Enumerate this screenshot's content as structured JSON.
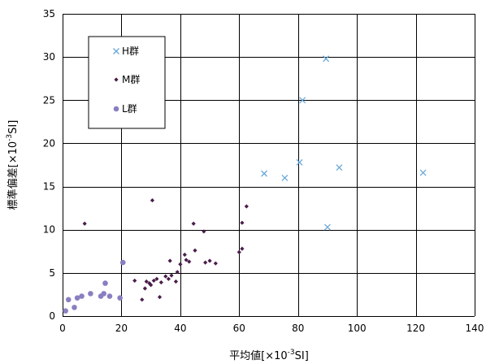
{
  "chart_data": {
    "type": "scatter",
    "xlabel": {
      "prefix": "平均値[×10",
      "sup": "-3",
      "suffix": "SI]"
    },
    "ylabel": {
      "prefix": "標準偏差[×10",
      "sup": "-3",
      "suffix": "SI]"
    },
    "xlim": [
      0,
      140
    ],
    "ylim": [
      0,
      35
    ],
    "xticks": [
      0,
      20,
      40,
      60,
      80,
      100,
      120,
      140
    ],
    "yticks": [
      0,
      5,
      10,
      15,
      20,
      25,
      30,
      35
    ],
    "grid": true,
    "legend": {
      "placement": "top-left"
    },
    "series": [
      {
        "name": "H群",
        "marker": "x",
        "color": "#6aa8d8",
        "points": [
          [
            68.5,
            16.5
          ],
          [
            75.5,
            16
          ],
          [
            80.5,
            17.8
          ],
          [
            81.5,
            25
          ],
          [
            89.5,
            29.8
          ],
          [
            94,
            17.2
          ],
          [
            90,
            10.3
          ],
          [
            122.5,
            16.6
          ]
        ]
      },
      {
        "name": "M群",
        "marker": "diamond",
        "color": "#4a1d4a",
        "points": [
          [
            7.5,
            10.7
          ],
          [
            24.5,
            4.1
          ],
          [
            27,
            1.9
          ],
          [
            28,
            3.2
          ],
          [
            28.5,
            4.0
          ],
          [
            29.5,
            3.8
          ],
          [
            30,
            3.6
          ],
          [
            30.5,
            13.4
          ],
          [
            31,
            4.1
          ],
          [
            32,
            4.3
          ],
          [
            33,
            2.2
          ],
          [
            33.5,
            3.9
          ],
          [
            35,
            4.6
          ],
          [
            36,
            4.3
          ],
          [
            36.5,
            6.4
          ],
          [
            37,
            4.7
          ],
          [
            38.5,
            4.0
          ],
          [
            39,
            5.1
          ],
          [
            40,
            6.0
          ],
          [
            41.5,
            7.1
          ],
          [
            42,
            6.5
          ],
          [
            43,
            6.3
          ],
          [
            44.5,
            10.7
          ],
          [
            45,
            7.6
          ],
          [
            48,
            9.8
          ],
          [
            48.5,
            6.2
          ],
          [
            50,
            6.4
          ],
          [
            52,
            6.1
          ],
          [
            60,
            7.4
          ],
          [
            61,
            7.8
          ],
          [
            61,
            10.8
          ],
          [
            62.5,
            12.7
          ]
        ]
      },
      {
        "name": "L群",
        "marker": "circle",
        "color": "#8a7fc0",
        "points": [
          [
            1,
            0.6
          ],
          [
            2,
            1.9
          ],
          [
            4,
            1.0
          ],
          [
            5,
            2.1
          ],
          [
            6.5,
            2.3
          ],
          [
            9.5,
            2.6
          ],
          [
            13,
            2.3
          ],
          [
            14,
            2.6
          ],
          [
            14.5,
            3.8
          ],
          [
            16,
            2.3
          ],
          [
            19.5,
            2.1
          ],
          [
            20.5,
            6.2
          ]
        ]
      }
    ]
  }
}
